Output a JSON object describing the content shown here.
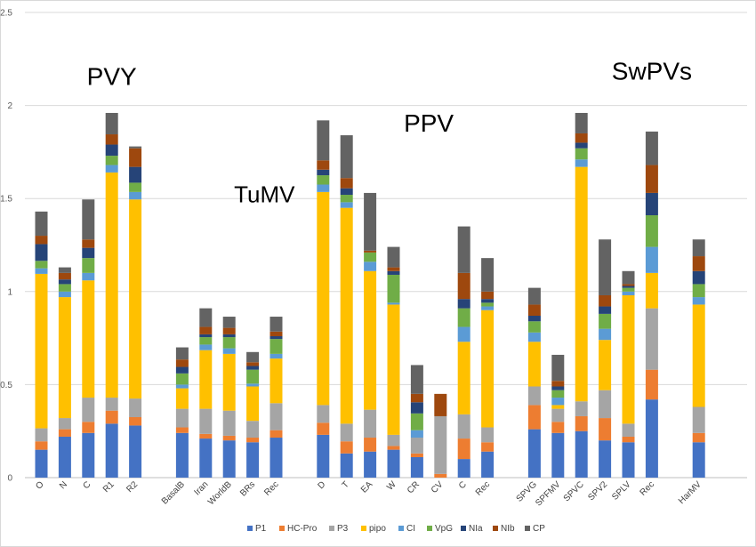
{
  "chart_data": {
    "type": "bar",
    "stacked": true,
    "ylim": [
      0,
      2.5
    ],
    "yticks": [
      "0",
      "0.5",
      "1",
      "1.5",
      "2",
      "2.5"
    ],
    "yticks_values": [
      0,
      0.5,
      1,
      1.5,
      2,
      2.5
    ],
    "grid": true,
    "legend_position": "bottom",
    "series": [
      {
        "name": "P1",
        "color": "#4472c4"
      },
      {
        "name": "HC-Pro",
        "color": "#ed7d31"
      },
      {
        "name": "P3",
        "color": "#a5a5a5"
      },
      {
        "name": "pipo",
        "color": "#ffc000"
      },
      {
        "name": "CI",
        "color": "#5b9bd5"
      },
      {
        "name": "VpG",
        "color": "#70ad47"
      },
      {
        "name": "NIa",
        "color": "#264478"
      },
      {
        "name": "NIb",
        "color": "#9e480e"
      },
      {
        "name": "CP",
        "color": "#636363"
      }
    ],
    "groups": [
      {
        "label": "PVY",
        "label_size": 28,
        "label_at": {
          "x": 3,
          "y": 2.11
        }
      },
      {
        "label": "TuMV",
        "label_size": 26,
        "label_at": {
          "x": 9.5,
          "y": 1.48
        }
      },
      {
        "label": "PPV",
        "label_size": 28,
        "label_at": {
          "x": 16.5,
          "y": 1.86
        }
      },
      {
        "label": "SwPVs",
        "label_size": 28,
        "label_at": {
          "x": 26,
          "y": 2.14
        }
      },
      {
        "label": "HarMV",
        "label_size": 17,
        "label_at": {
          "x": 32.5,
          "y": 1.41
        }
      }
    ],
    "bars": [
      {
        "category": "O",
        "slot": 0,
        "values": [
          0.15,
          0.045,
          0.07,
          0.83,
          0.03,
          0.04,
          0.09,
          0.045,
          0.13
        ]
      },
      {
        "category": "N",
        "slot": 1,
        "values": [
          0.22,
          0.04,
          0.06,
          0.65,
          0.03,
          0.04,
          0.025,
          0.035,
          0.03
        ]
      },
      {
        "category": "C",
        "slot": 2,
        "values": [
          0.24,
          0.06,
          0.13,
          0.63,
          0.04,
          0.08,
          0.055,
          0.045,
          0.215
        ]
      },
      {
        "category": "R1",
        "slot": 3,
        "values": [
          0.29,
          0.07,
          0.07,
          1.21,
          0.04,
          0.05,
          0.06,
          0.055,
          0.115
        ]
      },
      {
        "category": "R2",
        "slot": 4,
        "values": [
          0.28,
          0.045,
          0.1,
          1.07,
          0.04,
          0.05,
          0.085,
          0.1,
          0.01
        ]
      },
      {
        "category": "BasalB",
        "slot": 6,
        "values": [
          0.24,
          0.03,
          0.1,
          0.11,
          0.02,
          0.06,
          0.035,
          0.04,
          0.065
        ]
      },
      {
        "category": "Iran",
        "slot": 7,
        "values": [
          0.21,
          0.025,
          0.135,
          0.315,
          0.03,
          0.04,
          0.015,
          0.04,
          0.1
        ]
      },
      {
        "category": "WorldB",
        "slot": 8,
        "values": [
          0.2,
          0.025,
          0.135,
          0.305,
          0.03,
          0.06,
          0.015,
          0.035,
          0.06
        ]
      },
      {
        "category": "BRs",
        "slot": 9,
        "values": [
          0.19,
          0.025,
          0.09,
          0.185,
          0.015,
          0.075,
          0.02,
          0.02,
          0.055
        ]
      },
      {
        "category": "Rec",
        "slot": 10,
        "values": [
          0.215,
          0.04,
          0.145,
          0.24,
          0.025,
          0.08,
          0.015,
          0.025,
          0.08
        ]
      },
      {
        "category": "D",
        "slot": 12,
        "values": [
          0.23,
          0.065,
          0.095,
          1.145,
          0.04,
          0.05,
          0.03,
          0.05,
          0.215
        ]
      },
      {
        "category": "T",
        "slot": 13,
        "values": [
          0.13,
          0.065,
          0.095,
          1.16,
          0.03,
          0.04,
          0.035,
          0.055,
          0.23
        ]
      },
      {
        "category": "EA",
        "slot": 14,
        "values": [
          0.14,
          0.075,
          0.15,
          0.745,
          0.05,
          0.05,
          0.0,
          0.01,
          0.31
        ]
      },
      {
        "category": "W",
        "slot": 15,
        "values": [
          0.15,
          0.02,
          0.06,
          0.7,
          0.01,
          0.15,
          0.02,
          0.02,
          0.11
        ]
      },
      {
        "category": "CR",
        "slot": 16,
        "values": [
          0.11,
          0.02,
          0.085,
          0.0,
          0.04,
          0.09,
          0.06,
          0.045,
          0.155
        ]
      },
      {
        "category": "CV",
        "slot": 17,
        "values": [
          0.0,
          0.02,
          0.31,
          0.0,
          0.0,
          0.0,
          0.0,
          0.12,
          0.0
        ]
      },
      {
        "category": "C",
        "slot": 18,
        "values": [
          0.1,
          0.11,
          0.13,
          0.39,
          0.08,
          0.1,
          0.05,
          0.14,
          0.25
        ]
      },
      {
        "category": "Rec",
        "slot": 19,
        "values": [
          0.14,
          0.05,
          0.08,
          0.63,
          0.02,
          0.02,
          0.02,
          0.04,
          0.18
        ]
      },
      {
        "category": "SPVG",
        "slot": 21,
        "values": [
          0.26,
          0.13,
          0.1,
          0.24,
          0.05,
          0.06,
          0.03,
          0.06,
          0.09
        ]
      },
      {
        "category": "SPFMV",
        "slot": 22,
        "values": [
          0.24,
          0.06,
          0.07,
          0.02,
          0.04,
          0.04,
          0.02,
          0.03,
          0.14
        ]
      },
      {
        "category": "SPVC",
        "slot": 23,
        "values": [
          0.25,
          0.08,
          0.08,
          1.26,
          0.04,
          0.06,
          0.03,
          0.05,
          0.11
        ]
      },
      {
        "category": "SPV2",
        "slot": 24,
        "values": [
          0.2,
          0.12,
          0.15,
          0.27,
          0.06,
          0.08,
          0.04,
          0.06,
          0.3
        ]
      },
      {
        "category": "SPLV",
        "slot": 25,
        "values": [
          0.19,
          0.03,
          0.07,
          0.69,
          0.02,
          0.02,
          0.01,
          0.01,
          0.07
        ]
      },
      {
        "category": "Rec",
        "slot": 26,
        "values": [
          0.42,
          0.16,
          0.33,
          0.19,
          0.14,
          0.17,
          0.12,
          0.15,
          0.18
        ]
      },
      {
        "category": "HarMV",
        "slot": 28,
        "values": [
          0.19,
          0.05,
          0.14,
          0.55,
          0.04,
          0.07,
          0.07,
          0.08,
          0.09
        ]
      }
    ]
  }
}
